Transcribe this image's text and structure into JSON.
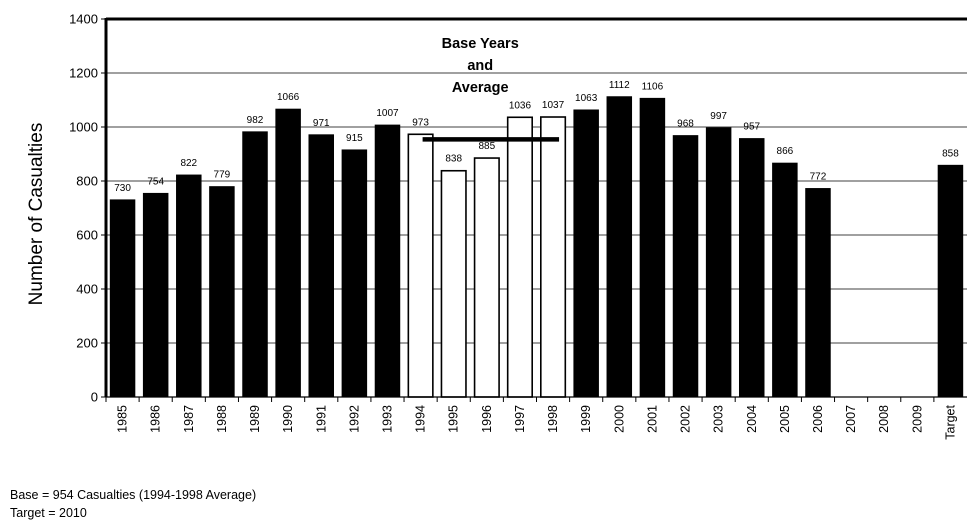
{
  "chart_data": {
    "type": "bar",
    "ylabel": "Number of Casualties",
    "ylim": [
      0,
      1400
    ],
    "yticks": [
      0,
      200,
      400,
      600,
      800,
      1000,
      1200,
      1400
    ],
    "grid": true,
    "categories": [
      "1985",
      "1986",
      "1987",
      "1988",
      "1989",
      "1990",
      "1991",
      "1992",
      "1993",
      "1994",
      "1995",
      "1996",
      "1997",
      "1998",
      "1999",
      "2000",
      "2001",
      "2002",
      "2003",
      "2004",
      "2005",
      "2006",
      "2007",
      "2008",
      "2009",
      "Target"
    ],
    "values": [
      730,
      754,
      822,
      779,
      982,
      1066,
      971,
      915,
      1007,
      973,
      838,
      885,
      1036,
      1037,
      1063,
      1112,
      1106,
      968,
      997,
      957,
      866,
      772,
      null,
      null,
      null,
      858
    ],
    "data_labels": [
      "730",
      "754",
      "822",
      "779",
      "982",
      "1066",
      "971",
      "915",
      "1007",
      "973",
      "838",
      "885",
      "1036",
      "1037",
      "1063",
      "1112",
      "1106",
      "968",
      "997",
      "957",
      "866",
      "772",
      "",
      "",
      "",
      "858"
    ],
    "base_year_categories": [
      "1994",
      "1995",
      "1996",
      "1997",
      "1998"
    ],
    "base_average": 954,
    "annotation": [
      "Base Years",
      "and",
      "Average"
    ],
    "colors": {
      "bar": "#000000",
      "base_bar": "#ffffff",
      "bar_edge": "#000000",
      "grid": "#000000"
    }
  },
  "footnotes": {
    "base": "Base = 954 Casualties (1994-1998 Average)",
    "target": "Target = 2010"
  }
}
